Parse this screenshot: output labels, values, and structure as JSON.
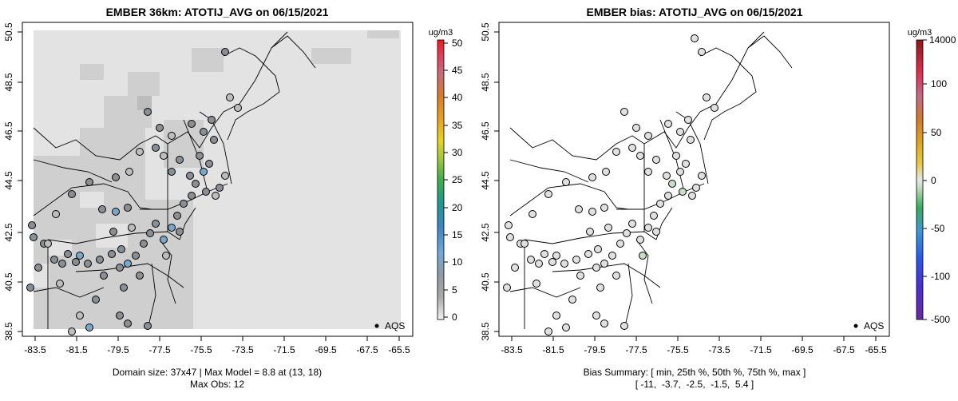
{
  "left_panel": {
    "title": "EMBER 36km: ATOTIJ_AVG on 06/15/2021",
    "x_ticks": [
      "-83.5",
      "-81.5",
      "-79.5",
      "-77.5",
      "-75.5",
      "-73.5",
      "-71.5",
      "-69.5",
      "-67.5",
      "-65.5"
    ],
    "y_ticks": [
      "38.5",
      "40.5",
      "42.5",
      "44.5",
      "46.5",
      "48.5",
      "50.5"
    ],
    "legend_label": "AQS",
    "colorbar_unit": "ug/m3",
    "colorbar_ticks": [
      "0",
      "5",
      "10",
      "15",
      "20",
      "25",
      "30",
      "35",
      "40",
      "45",
      "50"
    ],
    "footer_line1": "Domain size: 37x47 | Max Model = 8.8 at (13, 18)",
    "footer_line2": "Max Obs: 12"
  },
  "right_panel": {
    "title": "EMBER bias: ATOTIJ_AVG on 06/15/2021",
    "x_ticks": [
      "-83.5",
      "-81.5",
      "-79.5",
      "-77.5",
      "-75.5",
      "-73.5",
      "-71.5",
      "-69.5",
      "-67.5",
      "-65.5"
    ],
    "y_ticks": [
      "38.5",
      "40.5",
      "42.5",
      "44.5",
      "46.5",
      "48.5",
      "50.5"
    ],
    "legend_label": "AQS",
    "colorbar_unit": "ug/m3",
    "colorbar_ticks": [
      "14000",
      "100",
      "50",
      "0",
      "-50",
      "-100",
      "-500"
    ],
    "footer_line1": "Bias Summary: [ min, 25th %, 50th %, 75th %, max ]",
    "footer_line2": "[ -11,  -3.7,  -2.5,  -1.5,  5.4 ]"
  },
  "colors": {
    "model_field": "#e3e3e3",
    "model_high": "#cfcfcf",
    "station_low": "#bdbdbd",
    "station_mid": "#8a8f95",
    "station_high": "#7aa6c8",
    "bias_zero": "#e0e0e0",
    "bias_neg": "#c8dcc8"
  }
}
